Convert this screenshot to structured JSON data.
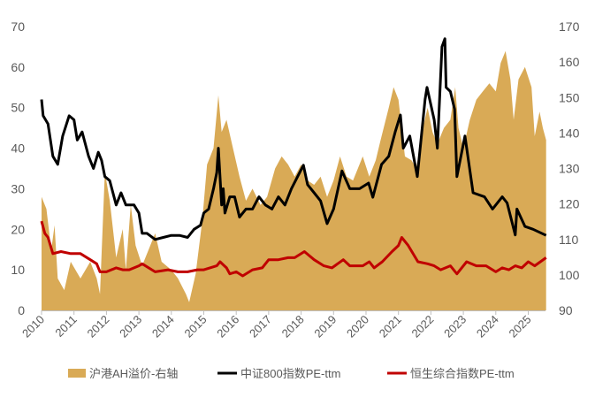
{
  "chart_data": {
    "type": "line+area",
    "title": "",
    "grid": false,
    "legend_placement": "bottom",
    "x_ticks": [
      "2010",
      "2011",
      "2012",
      "2013",
      "2014",
      "2015",
      "2016",
      "2017",
      "2018",
      "2019",
      "2020",
      "2021",
      "2022",
      "2023",
      "2024",
      "2025"
    ],
    "x_range": [
      2010,
      2025.55
    ],
    "left_axis": {
      "ticks": [
        "0",
        "10",
        "20",
        "30",
        "40",
        "50",
        "60",
        "70"
      ],
      "range": [
        0,
        70
      ]
    },
    "right_axis": {
      "ticks": [
        "90",
        "100",
        "110",
        "120",
        "130",
        "140",
        "150",
        "160",
        "170"
      ],
      "range": [
        90,
        170
      ]
    },
    "colors": {
      "area": "#D9AA56",
      "csi800": "#000000",
      "hsci": "#C00000",
      "axis": "#BFBFBF"
    },
    "series": [
      {
        "name": "沪港AH溢价-右轴",
        "type": "area",
        "axis": "right",
        "x": [
          2010.0,
          2010.15,
          2010.3,
          2010.4,
          2010.5,
          2010.7,
          2010.9,
          2011.2,
          2011.5,
          2011.7,
          2011.8,
          2011.95,
          2012.1,
          2012.3,
          2012.5,
          2012.6,
          2012.75,
          2012.9,
          2013.1,
          2013.3,
          2013.5,
          2013.7,
          2014.0,
          2014.2,
          2014.45,
          2014.55,
          2014.75,
          2014.95,
          2015.1,
          2015.3,
          2015.45,
          2015.55,
          2015.7,
          2015.9,
          2016.1,
          2016.3,
          2016.5,
          2016.75,
          2016.95,
          2017.2,
          2017.4,
          2017.6,
          2017.8,
          2018.0,
          2018.2,
          2018.4,
          2018.6,
          2018.8,
          2019.0,
          2019.2,
          2019.4,
          2019.6,
          2019.9,
          2020.1,
          2020.3,
          2020.45,
          2020.7,
          2020.85,
          2021.0,
          2021.2,
          2021.4,
          2021.55,
          2021.75,
          2021.9,
          2022.05,
          2022.2,
          2022.4,
          2022.6,
          2022.75,
          2022.85,
          2023.0,
          2023.2,
          2023.4,
          2023.6,
          2023.8,
          2024.0,
          2024.15,
          2024.3,
          2024.45,
          2024.55,
          2024.7,
          2024.9,
          2025.1,
          2025.2,
          2025.35,
          2025.45,
          2025.55
        ],
        "y": [
          122,
          118.6,
          107,
          114,
          99,
          95.7,
          103.7,
          99,
          103.7,
          99,
          94.6,
          129,
          121,
          104.9,
          112.9,
          101.4,
          119.7,
          108.3,
          102.6,
          107.1,
          111.7,
          103.7,
          101.4,
          99.1,
          94.6,
          92.3,
          100.3,
          115.1,
          131.1,
          135.7,
          150.6,
          140.3,
          143.7,
          135.7,
          127.7,
          120.9,
          124.3,
          119.7,
          122,
          130,
          133.4,
          131.1,
          127.7,
          131.1,
          126.6,
          125.4,
          127.7,
          122,
          126.6,
          133.4,
          127.7,
          126.6,
          133.4,
          127.7,
          132.3,
          138,
          147.1,
          152.9,
          149.4,
          133.4,
          132.3,
          130,
          141.4,
          147.1,
          140.3,
          136.9,
          141.4,
          143.7,
          152.9,
          141.4,
          135.7,
          143.7,
          149.4,
          151.7,
          154,
          151.7,
          159.7,
          163.1,
          155.1,
          143.7,
          155.1,
          158.6,
          152.9,
          139.1,
          146,
          141.4,
          138
        ]
      },
      {
        "name": "中证800指数PE-ttm",
        "type": "line",
        "axis": "left",
        "x": [
          2010.0,
          2010.05,
          2010.2,
          2010.35,
          2010.5,
          2010.65,
          2010.85,
          2011.0,
          2011.1,
          2011.25,
          2011.45,
          2011.6,
          2011.75,
          2011.85,
          2011.95,
          2012.1,
          2012.3,
          2012.45,
          2012.6,
          2012.85,
          2013.0,
          2013.1,
          2013.25,
          2013.5,
          2013.75,
          2014.0,
          2014.25,
          2014.5,
          2014.7,
          2014.9,
          2015.0,
          2015.15,
          2015.3,
          2015.4,
          2015.45,
          2015.55,
          2015.6,
          2015.65,
          2015.8,
          2015.95,
          2016.1,
          2016.3,
          2016.5,
          2016.7,
          2016.9,
          2017.1,
          2017.3,
          2017.5,
          2017.7,
          2018.07,
          2018.2,
          2018.4,
          2018.6,
          2018.8,
          2019.0,
          2019.26,
          2019.5,
          2019.8,
          2020.08,
          2020.21,
          2020.48,
          2020.7,
          2020.9,
          2021.06,
          2021.15,
          2021.35,
          2021.58,
          2021.82,
          2021.88,
          2022.1,
          2022.2,
          2022.34,
          2022.43,
          2022.47,
          2022.6,
          2022.73,
          2022.8,
          2023.05,
          2023.3,
          2023.65,
          2023.9,
          2024.2,
          2024.35,
          2024.6,
          2024.65,
          2024.9,
          2025.15,
          2025.55
        ],
        "y": [
          52,
          48,
          46,
          38,
          36,
          43,
          48,
          47,
          42,
          44,
          38,
          35,
          39,
          37,
          33,
          32,
          26,
          29,
          26,
          26,
          24,
          19,
          19,
          17.5,
          18,
          18.5,
          18.5,
          18,
          20,
          21,
          24,
          25,
          30,
          34,
          40,
          26,
          30,
          24,
          28,
          28,
          23,
          25,
          25,
          28,
          26,
          25,
          28,
          26,
          30,
          35.8,
          31,
          29,
          27,
          21.4,
          25,
          34.4,
          30,
          30,
          31.4,
          27.9,
          36,
          38,
          44,
          48.2,
          40,
          43,
          33,
          52,
          55,
          47,
          40,
          65,
          67,
          55,
          54,
          49.6,
          33,
          43,
          29,
          28,
          25,
          28,
          26.5,
          18.6,
          25,
          20.7,
          20,
          18.5
        ]
      },
      {
        "name": "恒生综合指数PE-ttm",
        "type": "line",
        "axis": "left",
        "x": [
          2010.0,
          2010.1,
          2010.2,
          2010.35,
          2010.6,
          2010.9,
          2011.2,
          2011.5,
          2011.7,
          2011.8,
          2012.0,
          2012.3,
          2012.5,
          2012.7,
          2013.0,
          2013.1,
          2013.4,
          2013.5,
          2013.9,
          2014.2,
          2014.5,
          2014.8,
          2015.0,
          2015.4,
          2015.5,
          2015.7,
          2015.8,
          2016.0,
          2016.2,
          2016.5,
          2016.8,
          2017.0,
          2017.3,
          2017.6,
          2017.8,
          2018.1,
          2018.4,
          2018.7,
          2018.95,
          2019.3,
          2019.5,
          2019.9,
          2020.1,
          2020.25,
          2020.5,
          2020.8,
          2021.0,
          2021.1,
          2021.3,
          2021.6,
          2021.9,
          2022.1,
          2022.3,
          2022.6,
          2022.8,
          2023.1,
          2023.4,
          2023.7,
          2024.0,
          2024.2,
          2024.4,
          2024.6,
          2024.8,
          2025.0,
          2025.2,
          2025.55
        ],
        "y": [
          22,
          19,
          18,
          14,
          14.5,
          14,
          14,
          12.5,
          11.5,
          9.5,
          9.5,
          10.5,
          10,
          10,
          11,
          11.5,
          10,
          9.5,
          10,
          9.5,
          9.5,
          10,
          10,
          11,
          12,
          10.5,
          9,
          9.5,
          8.5,
          10,
          10.5,
          12.5,
          12.5,
          13,
          13,
          14.5,
          12.5,
          11,
          10.5,
          12.5,
          11,
          11,
          12,
          10.5,
          12,
          14.5,
          16,
          18,
          16,
          12,
          11.5,
          11,
          10,
          11,
          9,
          12,
          11,
          11,
          9.5,
          10.5,
          10,
          11,
          10.5,
          12,
          11,
          13
        ]
      }
    ]
  }
}
